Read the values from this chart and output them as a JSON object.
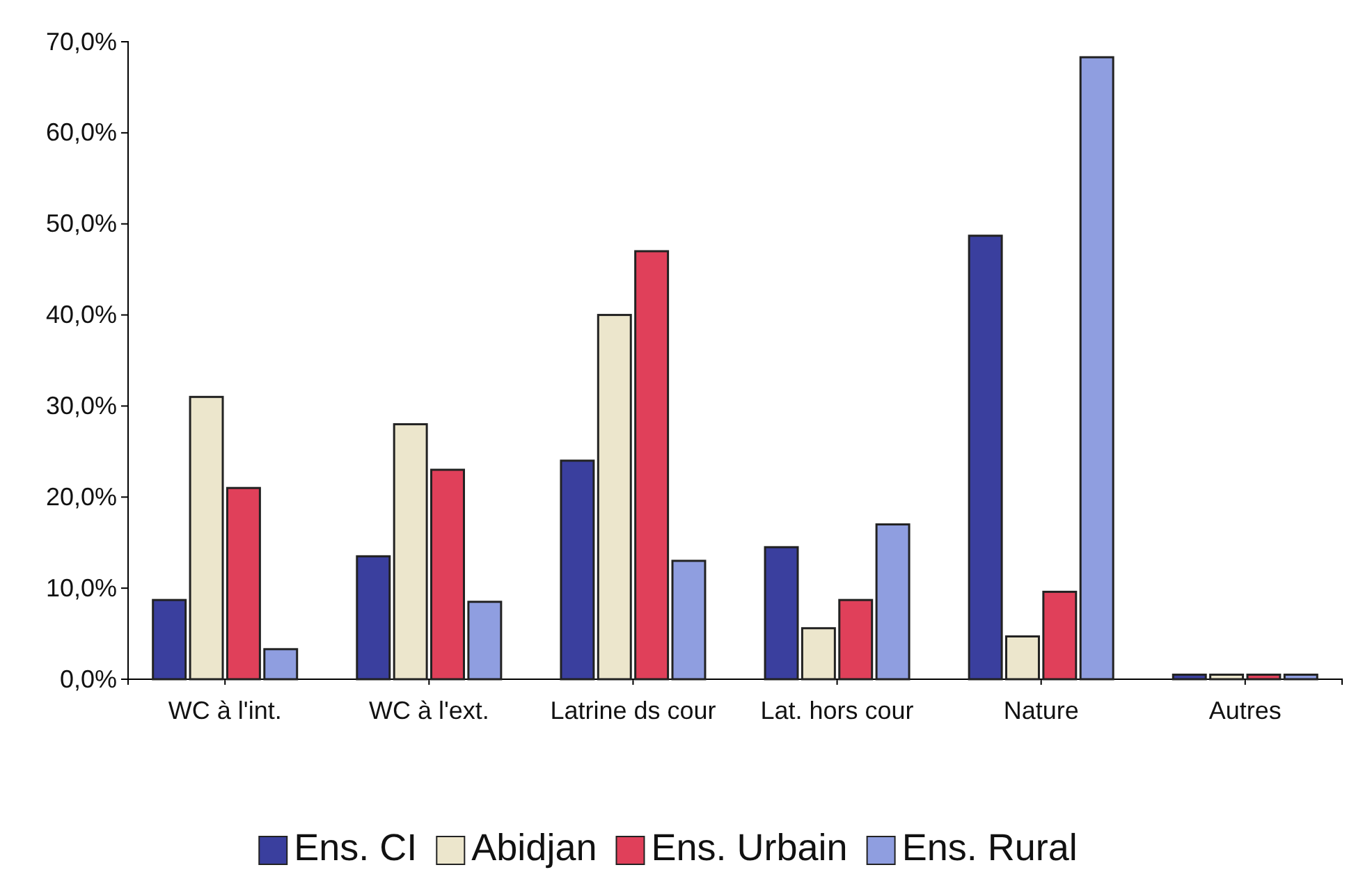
{
  "chart_data": {
    "type": "bar",
    "categories": [
      "WC à l'int.",
      "WC à l'ext.",
      "Latrine ds cour",
      "Lat. hors cour",
      "Nature",
      "Autres"
    ],
    "series": [
      {
        "name": "Ens. CI",
        "color": "#3a3f9e",
        "values": [
          8.7,
          13.5,
          24,
          14.5,
          48.7,
          0.5
        ]
      },
      {
        "name": "Abidjan",
        "color": "#ece6cc",
        "values": [
          31,
          28,
          40,
          5.6,
          4.7,
          0.5
        ]
      },
      {
        "name": "Ens. Urbain",
        "color": "#e0405a",
        "values": [
          21,
          23,
          47,
          8.7,
          9.6,
          0.5
        ]
      },
      {
        "name": "Ens. Rural",
        "color": "#8f9ee0",
        "values": [
          3.3,
          8.5,
          13,
          17,
          68.3,
          0.5
        ]
      }
    ],
    "ylim": [
      0,
      70
    ],
    "yticks": [
      {
        "value": 0,
        "label": "0,0%"
      },
      {
        "value": 10,
        "label": "10,0%"
      },
      {
        "value": 20,
        "label": "20,0%"
      },
      {
        "value": 30,
        "label": "30,0%"
      },
      {
        "value": 40,
        "label": "40,0%"
      },
      {
        "value": 50,
        "label": "50,0%"
      },
      {
        "value": 60,
        "label": "60,0%"
      },
      {
        "value": 70,
        "label": "70,0%"
      }
    ],
    "legend": "bottom"
  }
}
